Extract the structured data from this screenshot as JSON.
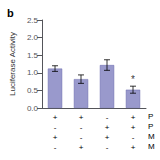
{
  "chart_data": {
    "type": "bar",
    "title": "b",
    "ylabel": "Luciferase Activity",
    "categories": [
      null,
      null,
      null,
      null
    ],
    "values": [
      1.12,
      0.82,
      1.22,
      0.52
    ],
    "errors": [
      0.08,
      0.12,
      0.15,
      0.1
    ],
    "color": "#9999cc",
    "ylim": [
      0.0,
      2.5
    ],
    "yticks": [
      {
        "value": 0.0,
        "label": "0.0"
      },
      0.5,
      {
        "value": 1.0,
        "label": "1.0"
      },
      1.5,
      {
        "value": 2.0,
        "label": "2.0"
      },
      2.5
    ],
    "grid": false,
    "tick_labels": "y",
    "annotations": [
      {
        "text": "*",
        "bar": 3
      }
    ],
    "table_rows": [
      {
        "label": "P",
        "cells": [
          "+",
          "+",
          "-",
          "+"
        ]
      },
      {
        "label": "P",
        "cells": [
          "-",
          "-",
          "+",
          "+"
        ]
      },
      {
        "label": "M",
        "cells": [
          "+",
          "-",
          "+",
          "-"
        ]
      },
      {
        "label": "M",
        "cells": [
          "-",
          "+",
          "-",
          "+"
        ]
      }
    ]
  }
}
